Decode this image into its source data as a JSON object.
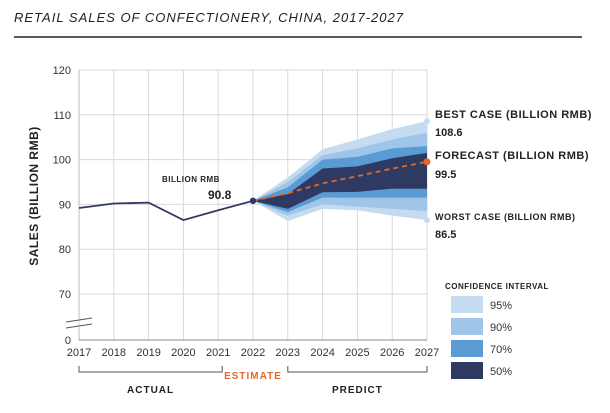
{
  "chart_data": {
    "type": "line",
    "title": "RETAIL SALES OF CONFECTIONERY, CHINA, 2017-2027",
    "ylabel": "SALES (BILLION RMB)",
    "xlabel": "",
    "ylim": [
      0,
      120
    ],
    "y_ticks": [
      0,
      70,
      80,
      90,
      100,
      110,
      120
    ],
    "y_axis_break": true,
    "x": [
      2017,
      2018,
      2019,
      2020,
      2021,
      2022,
      2023,
      2024,
      2025,
      2026,
      2027
    ],
    "x_tick_labels": [
      "2017",
      "2018",
      "2019",
      "2020",
      "2021",
      "2022",
      "2023",
      "2024",
      "2025",
      "2026",
      "2027"
    ],
    "grid": true,
    "series": [
      {
        "name": "actual",
        "x": [
          2017,
          2018,
          2019,
          2020,
          2021,
          2022
        ],
        "values": [
          89.2,
          90.2,
          90.4,
          86.5,
          88.7,
          90.8
        ],
        "color": "#2f3a63"
      },
      {
        "name": "forecast",
        "x": [
          2022,
          2023,
          2024,
          2025,
          2026,
          2027
        ],
        "values": [
          90.8,
          92.5,
          94.7,
          96.3,
          98.0,
          99.5
        ],
        "color": "#e06a2c",
        "style": "dashed"
      }
    ],
    "confidence_bands": [
      {
        "level": "95%",
        "color": "#c5dcf0",
        "x": [
          2022,
          2023,
          2024,
          2025,
          2026,
          2027
        ],
        "upper": [
          90.8,
          96.0,
          102.3,
          104.5,
          106.8,
          108.6
        ],
        "lower": [
          90.8,
          86.3,
          89.0,
          88.7,
          87.5,
          86.5
        ]
      },
      {
        "level": "90%",
        "color": "#9fc5e8",
        "x": [
          2022,
          2023,
          2024,
          2025,
          2026,
          2027
        ],
        "upper": [
          90.8,
          95.0,
          101.0,
          102.5,
          104.5,
          106.0
        ],
        "lower": [
          90.8,
          87.5,
          90.0,
          89.5,
          89.0,
          88.5
        ]
      },
      {
        "level": "70%",
        "color": "#5b9bd5",
        "x": [
          2022,
          2023,
          2024,
          2025,
          2026,
          2027
        ],
        "upper": [
          90.8,
          93.8,
          100.0,
          100.6,
          102.5,
          103.0
        ],
        "lower": [
          90.8,
          88.3,
          91.5,
          91.5,
          91.5,
          91.5
        ]
      },
      {
        "level": "50%",
        "color": "#2f3a63",
        "x": [
          2022,
          2023,
          2024,
          2025,
          2026,
          2027
        ],
        "upper": [
          90.8,
          92.3,
          98.0,
          98.5,
          100.3,
          101.5
        ],
        "lower": [
          90.8,
          89.0,
          92.7,
          92.8,
          93.5,
          93.5
        ]
      }
    ],
    "annotations": [
      {
        "label": "BILLION RMB",
        "value": "90.8",
        "x": 2022,
        "y": 90.8
      },
      {
        "label": "BEST CASE (BILLION RMB)",
        "value": "108.6",
        "x": 2027,
        "y": 108.6
      },
      {
        "label": "FORECAST (BILLION RMB)",
        "value": "99.5",
        "x": 2027,
        "y": 99.5
      },
      {
        "label": "WORST CASE (BILLION RMB)",
        "value": "86.5",
        "x": 2027,
        "y": 86.5
      }
    ],
    "periods": [
      {
        "label": "ACTUAL",
        "from": 2017,
        "to": 2021,
        "color": "#222222"
      },
      {
        "label": "ESTIMATE",
        "from": 2022,
        "to": 2022,
        "color": "#e06a2c"
      },
      {
        "label": "PREDICT",
        "from": 2023,
        "to": 2027,
        "color": "#222222"
      }
    ],
    "legend": {
      "title": "CONFIDENCE INTERVAL",
      "position": "bottom-right",
      "items": [
        {
          "label": "95%",
          "color": "#c5dcf0"
        },
        {
          "label": "90%",
          "color": "#9fc5e8"
        },
        {
          "label": "70%",
          "color": "#5b9bd5"
        },
        {
          "label": "50%",
          "color": "#2f3a63"
        }
      ]
    }
  }
}
